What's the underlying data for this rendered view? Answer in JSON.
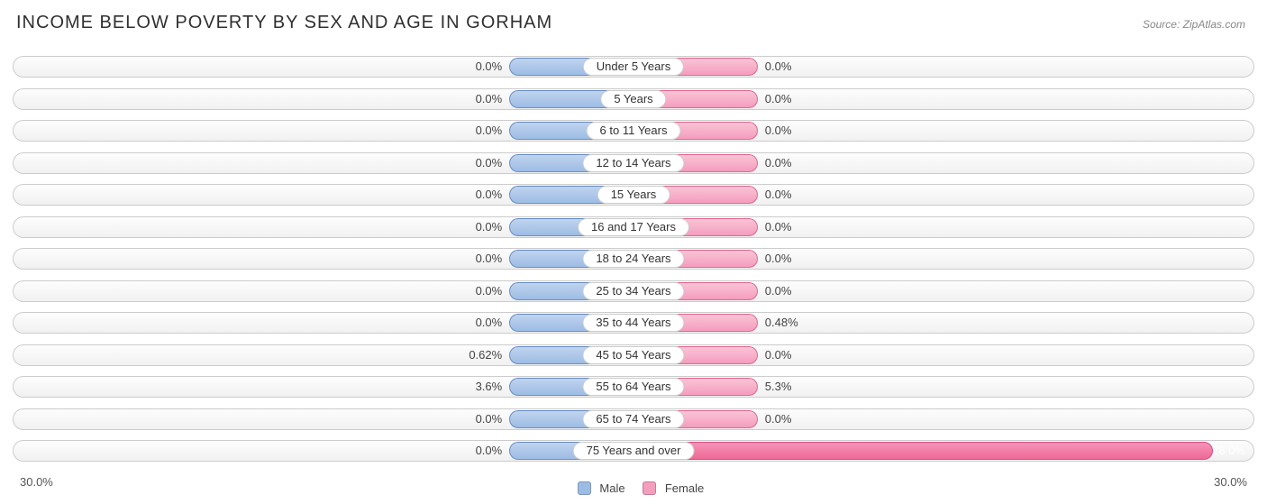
{
  "title": "INCOME BELOW POVERTY BY SEX AND AGE IN GORHAM",
  "source": "Source: ZipAtlas.com",
  "axis_max": 30.0,
  "axis_label_left": "30.0%",
  "axis_label_right": "30.0%",
  "min_bar_pct": 10.0,
  "colors": {
    "male_fill_top": "#c0d4ee",
    "male_fill_bottom": "#9dbce5",
    "male_border": "#6f97cf",
    "female_fill_top": "#fac4d7",
    "female_fill_bottom": "#f49dbd",
    "female_border": "#e07ba0",
    "female_strong_top": "#f694b7",
    "female_strong_bottom": "#ed6997",
    "track_border": "#cccccc",
    "text": "#333333",
    "title_text": "#303030",
    "source_text": "#888888",
    "background": "#ffffff"
  },
  "legend": {
    "male": "Male",
    "female": "Female",
    "male_swatch": "#9dbce5",
    "female_swatch": "#f49dbd"
  },
  "categories": [
    {
      "label": "Under 5 Years",
      "male": 0.0,
      "female": 0.0,
      "male_txt": "0.0%",
      "female_txt": "0.0%"
    },
    {
      "label": "5 Years",
      "male": 0.0,
      "female": 0.0,
      "male_txt": "0.0%",
      "female_txt": "0.0%"
    },
    {
      "label": "6 to 11 Years",
      "male": 0.0,
      "female": 0.0,
      "male_txt": "0.0%",
      "female_txt": "0.0%"
    },
    {
      "label": "12 to 14 Years",
      "male": 0.0,
      "female": 0.0,
      "male_txt": "0.0%",
      "female_txt": "0.0%"
    },
    {
      "label": "15 Years",
      "male": 0.0,
      "female": 0.0,
      "male_txt": "0.0%",
      "female_txt": "0.0%"
    },
    {
      "label": "16 and 17 Years",
      "male": 0.0,
      "female": 0.0,
      "male_txt": "0.0%",
      "female_txt": "0.0%"
    },
    {
      "label": "18 to 24 Years",
      "male": 0.0,
      "female": 0.0,
      "male_txt": "0.0%",
      "female_txt": "0.0%"
    },
    {
      "label": "25 to 34 Years",
      "male": 0.0,
      "female": 0.0,
      "male_txt": "0.0%",
      "female_txt": "0.0%"
    },
    {
      "label": "35 to 44 Years",
      "male": 0.0,
      "female": 0.48,
      "male_txt": "0.0%",
      "female_txt": "0.48%"
    },
    {
      "label": "45 to 54 Years",
      "male": 0.62,
      "female": 0.0,
      "male_txt": "0.62%",
      "female_txt": "0.0%"
    },
    {
      "label": "55 to 64 Years",
      "male": 3.6,
      "female": 5.3,
      "male_txt": "3.6%",
      "female_txt": "5.3%"
    },
    {
      "label": "65 to 74 Years",
      "male": 0.0,
      "female": 0.0,
      "male_txt": "0.0%",
      "female_txt": "0.0%"
    },
    {
      "label": "75 Years and over",
      "male": 0.0,
      "female": 28.0,
      "male_txt": "0.0%",
      "female_txt": "28.0%"
    }
  ]
}
